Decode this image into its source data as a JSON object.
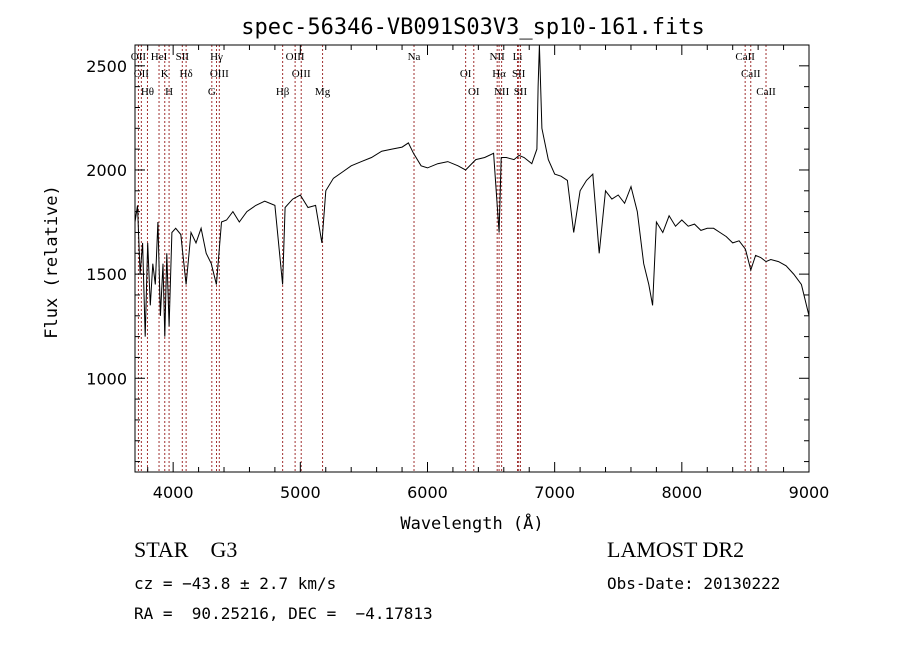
{
  "chart_data": {
    "type": "line",
    "title": "spec-56346-VB091S03V3_sp10-161.fits",
    "xlabel": "Wavelength (Å)",
    "ylabel": "Flux (relative)",
    "xlim": [
      3700,
      9000
    ],
    "ylim": [
      550,
      2600
    ],
    "xticks": [
      4000,
      5000,
      6000,
      7000,
      8000,
      9000
    ],
    "yticks": [
      1000,
      1500,
      2000,
      2500
    ],
    "grid": false,
    "series": [
      {
        "x": [
          3700,
          3720,
          3740,
          3760,
          3780,
          3800,
          3820,
          3840,
          3860,
          3880,
          3900,
          3920,
          3934,
          3950,
          3968,
          3990,
          4020,
          4060,
          4102,
          4140,
          4180,
          4220,
          4260,
          4300,
          4340,
          4380,
          4420,
          4470,
          4520,
          4580,
          4650,
          4720,
          4800,
          4861,
          4880,
          4940,
          5000,
          5060,
          5120,
          5170,
          5200,
          5260,
          5330,
          5400,
          5480,
          5560,
          5640,
          5720,
          5800,
          5850,
          5890,
          5950,
          6000,
          6080,
          6160,
          6240,
          6300,
          6380,
          6450,
          6520,
          6563,
          6580,
          6620,
          6680,
          6720,
          6760,
          6820,
          6860,
          6870,
          6880,
          6900,
          6950,
          7000,
          7050,
          7100,
          7150,
          7200,
          7250,
          7300,
          7350,
          7400,
          7450,
          7500,
          7550,
          7600,
          7650,
          7700,
          7740,
          7770,
          7800,
          7850,
          7900,
          7950,
          8000,
          8050,
          8100,
          8150,
          8200,
          8250,
          8300,
          8350,
          8400,
          8450,
          8500,
          8542,
          8580,
          8620,
          8662,
          8700,
          8760,
          8820,
          8880,
          8940,
          9000
        ],
        "y": [
          1750,
          1830,
          1500,
          1650,
          1200,
          1650,
          1350,
          1550,
          1450,
          1750,
          1300,
          1550,
          1200,
          1600,
          1250,
          1700,
          1720,
          1690,
          1450,
          1700,
          1650,
          1720,
          1600,
          1550,
          1450,
          1750,
          1760,
          1800,
          1750,
          1800,
          1830,
          1850,
          1830,
          1450,
          1820,
          1860,
          1880,
          1820,
          1830,
          1650,
          1900,
          1960,
          1990,
          2020,
          2040,
          2060,
          2090,
          2100,
          2110,
          2130,
          2080,
          2020,
          2010,
          2030,
          2040,
          2020,
          2000,
          2050,
          2060,
          2080,
          1700,
          2060,
          2060,
          2050,
          2070,
          2060,
          2030,
          2100,
          2400,
          2650,
          2200,
          2050,
          1980,
          1970,
          1950,
          1700,
          1900,
          1950,
          1980,
          1600,
          1900,
          1860,
          1880,
          1840,
          1920,
          1800,
          1550,
          1450,
          1350,
          1750,
          1700,
          1780,
          1730,
          1760,
          1730,
          1740,
          1710,
          1720,
          1720,
          1700,
          1680,
          1650,
          1660,
          1620,
          1520,
          1590,
          1580,
          1560,
          1570,
          1560,
          1540,
          1500,
          1450,
          1300
        ]
      }
    ],
    "lines": [
      {
        "x": 3727,
        "label": "OII"
      },
      {
        "x": 3750,
        "label": "OII"
      },
      {
        "x": 3798,
        "label": "Hθ"
      },
      {
        "x": 3889,
        "label": "HeI"
      },
      {
        "x": 3934,
        "label": "K"
      },
      {
        "x": 3968,
        "label": "H"
      },
      {
        "x": 4072,
        "label": "SII"
      },
      {
        "x": 4102,
        "label": "Hδ"
      },
      {
        "x": 4304,
        "label": "G"
      },
      {
        "x": 4341,
        "label": "Hγ"
      },
      {
        "x": 4363,
        "label": "OIII"
      },
      {
        "x": 4861,
        "label": "Hβ"
      },
      {
        "x": 4959,
        "label": "OIII"
      },
      {
        "x": 5007,
        "label": "OIII"
      },
      {
        "x": 5175,
        "label": "Mg"
      },
      {
        "x": 5894,
        "label": "Na"
      },
      {
        "x": 6300,
        "label": "OI"
      },
      {
        "x": 6364,
        "label": "OI"
      },
      {
        "x": 6548,
        "label": "NII"
      },
      {
        "x": 6563,
        "label": "Hα"
      },
      {
        "x": 6583,
        "label": "NII"
      },
      {
        "x": 6708,
        "label": "Li"
      },
      {
        "x": 6717,
        "label": "SII"
      },
      {
        "x": 6731,
        "label": "SII"
      },
      {
        "x": 8498,
        "label": "CaII"
      },
      {
        "x": 8542,
        "label": "CaII"
      },
      {
        "x": 8662,
        "label": "CaII"
      }
    ]
  },
  "info": {
    "object": "STAR    G3",
    "survey": "LAMOST DR2",
    "cz": "cz = −43.8 ± 2.7 km/s",
    "obs_date": "Obs-Date: 20130222",
    "coords": "RA =  90.25216, DEC =  −4.17813"
  },
  "colors": {
    "spectrum": "#000000",
    "line_markers": "#a03030"
  }
}
